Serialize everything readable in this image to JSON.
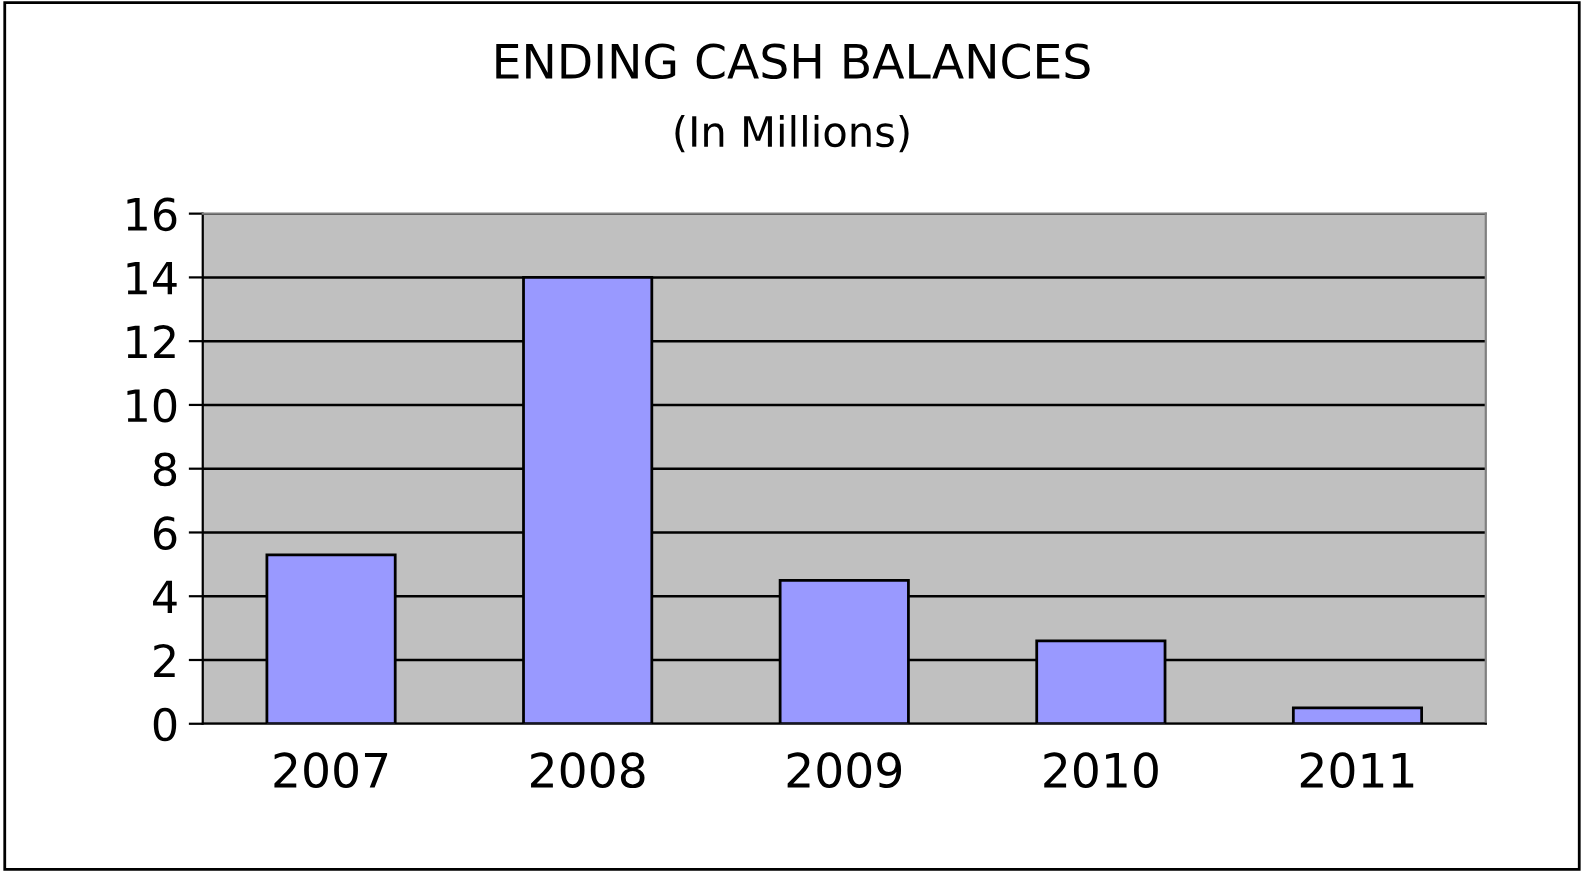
{
  "chart_data": {
    "type": "bar",
    "title": "ENDING CASH BALANCES",
    "subtitle": "(In Millions)",
    "categories": [
      "2007",
      "2008",
      "2009",
      "2010",
      "2011"
    ],
    "values": [
      5.3,
      14.0,
      4.5,
      2.6,
      0.5
    ],
    "color": "#9999ff",
    "ylim": [
      0,
      16
    ],
    "yticks": [
      0,
      2,
      4,
      6,
      8,
      10,
      12,
      14,
      16
    ],
    "grid": "y",
    "legend": false
  }
}
